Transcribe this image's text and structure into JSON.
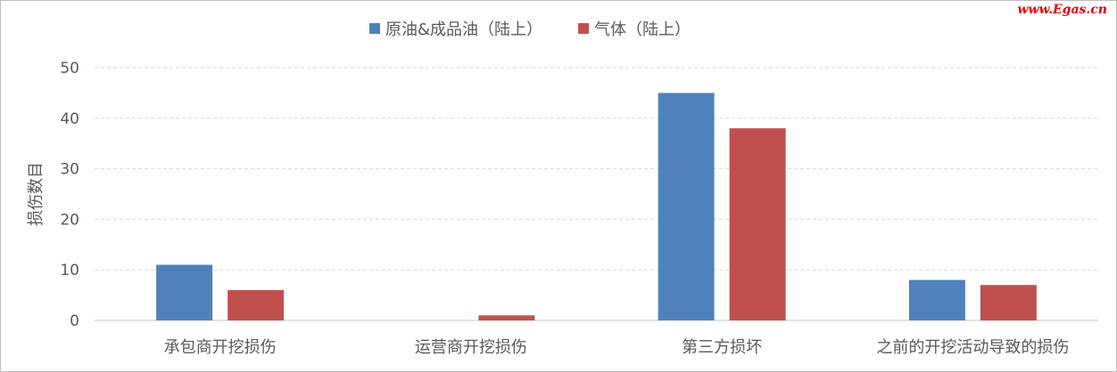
{
  "watermark": "www.Egas.cn",
  "chart_data": {
    "type": "bar",
    "categories": [
      "承包商开挖损伤",
      "运营商开挖损伤",
      "第三方损坏",
      "之前的开挖活动导致的损伤"
    ],
    "series": [
      {
        "name": "原油&成品油（陆上）",
        "values": [
          11,
          0,
          45,
          8
        ],
        "color": "#4f81bd"
      },
      {
        "name": "气体（陆上）",
        "values": [
          6,
          1,
          38,
          7
        ],
        "color": "#c0504d"
      }
    ],
    "ylabel": "损伤数目",
    "ylim": [
      0,
      50
    ],
    "yticks": [
      0,
      10,
      20,
      30,
      40,
      50
    ],
    "grid": true,
    "legend": "top"
  }
}
